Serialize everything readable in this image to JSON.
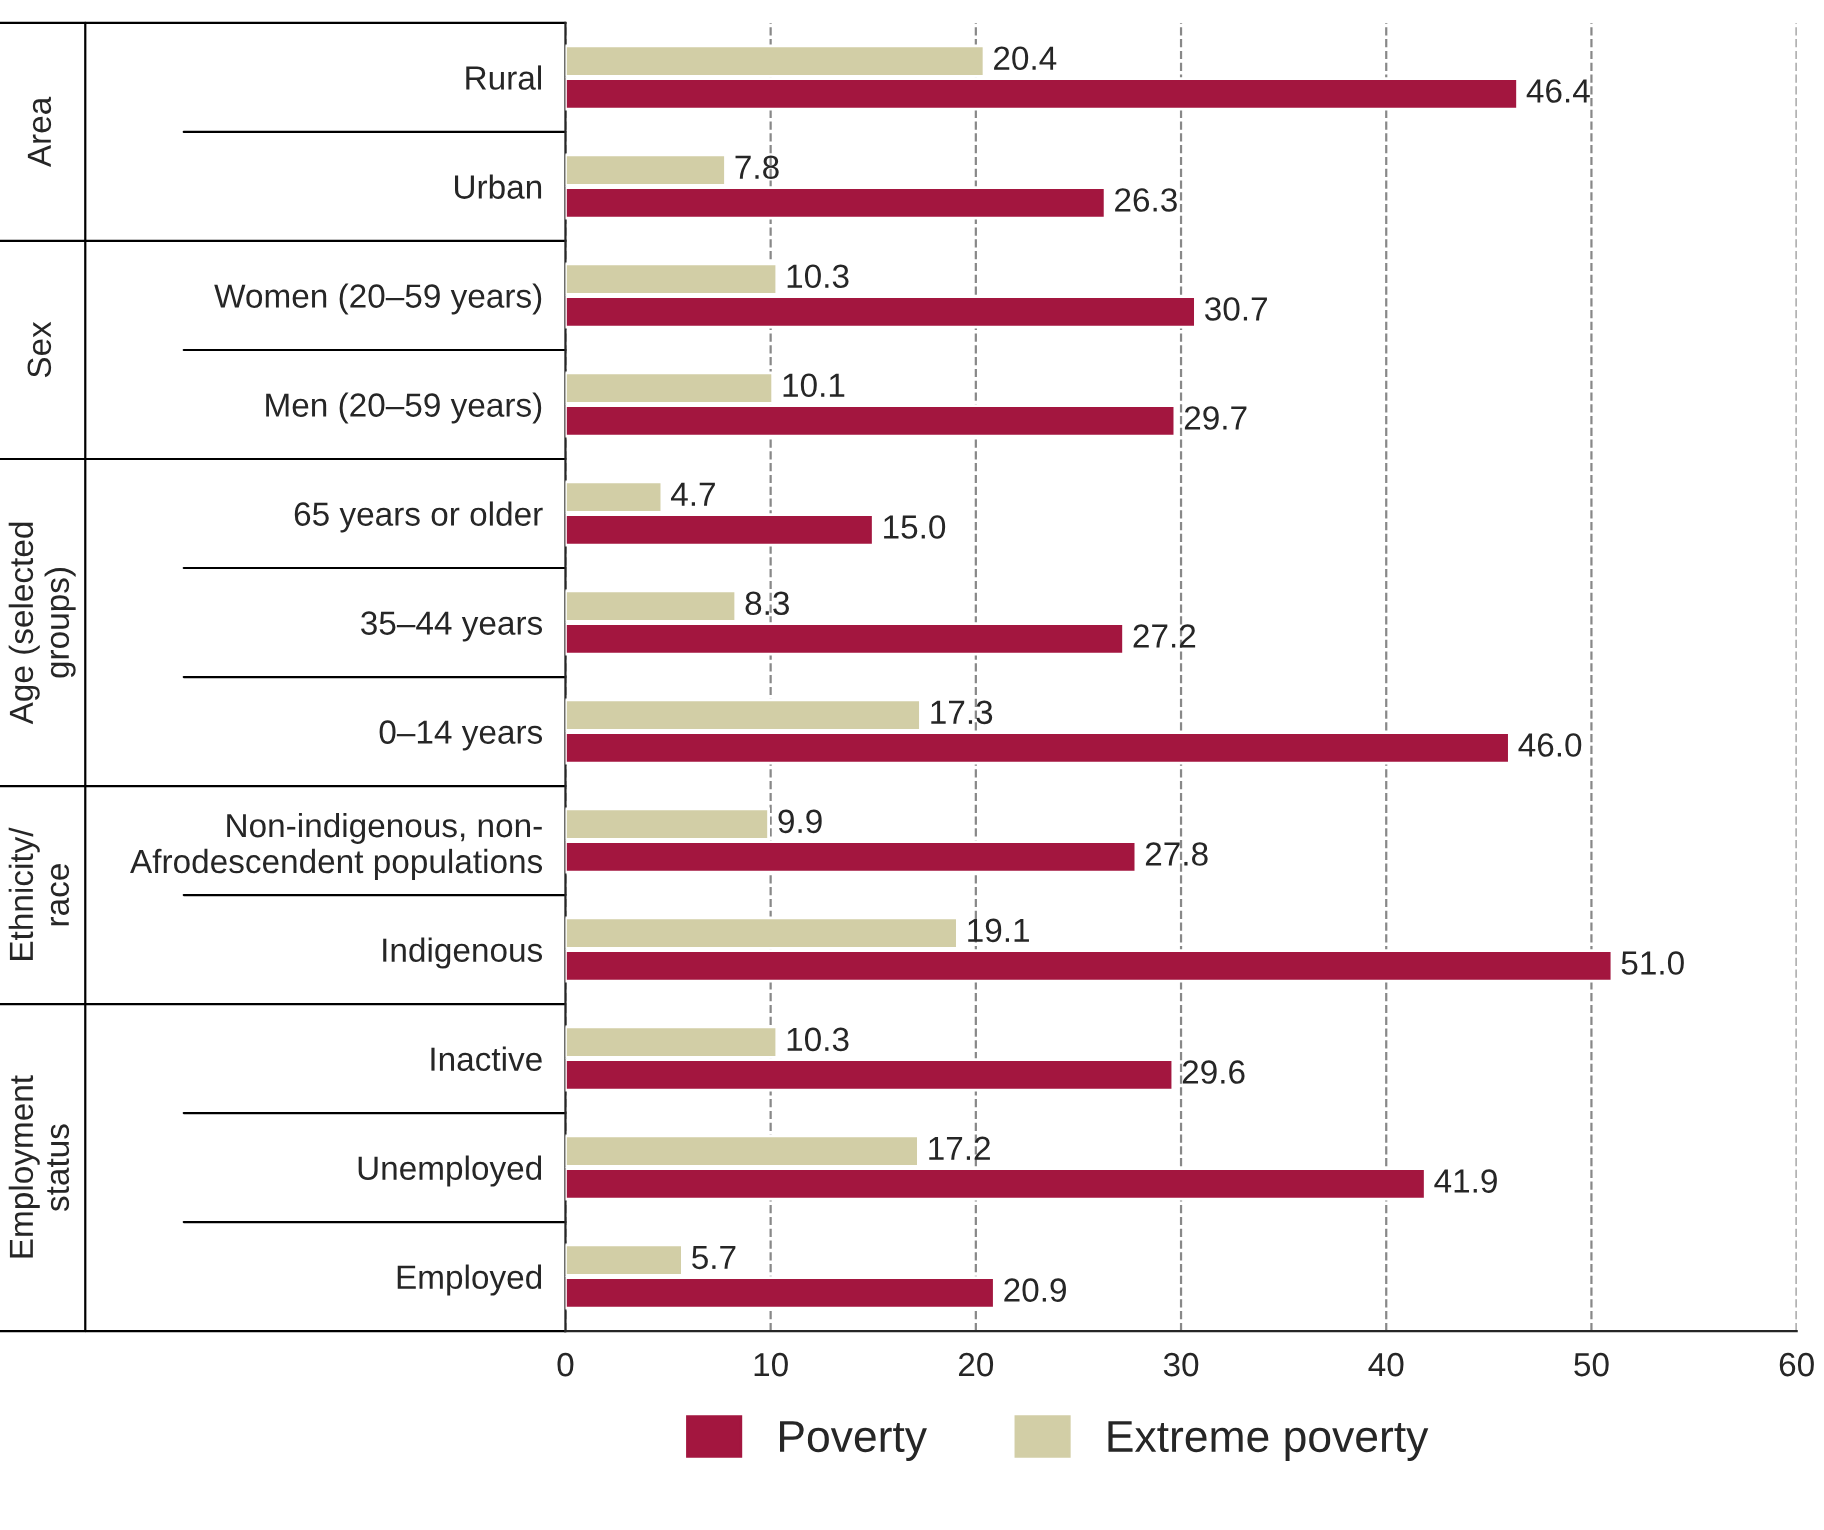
{
  "chart_data": {
    "type": "bar",
    "orientation": "horizontal",
    "categories": [
      "Rural",
      "Urban",
      "Women (20–59 years)",
      "Men (20–59 years)",
      "65 years or older",
      "35–44 years",
      "0–14 years",
      "Non-indigenous, non-\nAfrodescendent populations",
      "Indigenous",
      "Inactive",
      "Unemployed",
      "Employed"
    ],
    "series": [
      {
        "name": "Extreme poverty",
        "color": "#d2cea6",
        "values": [
          20.4,
          7.8,
          10.3,
          10.1,
          4.7,
          8.3,
          17.3,
          9.9,
          19.1,
          10.3,
          17.2,
          5.7
        ],
        "value_labels": [
          "20.4",
          "7.8",
          "10.3",
          "10.1",
          "4.7",
          "8.3",
          "17.3",
          "9.9",
          "19.1",
          "10.3",
          "17.2",
          "5.7"
        ]
      },
      {
        "name": "Poverty",
        "color": "#a3163f",
        "values": [
          46.4,
          26.3,
          30.7,
          29.7,
          15.0,
          27.2,
          46.0,
          27.8,
          51.0,
          29.6,
          41.9,
          20.9
        ],
        "value_labels": [
          "46.4",
          "26.3",
          "30.7",
          "29.7",
          "15.0",
          "27.2",
          "46.0",
          "27.8",
          "51.0",
          "29.6",
          "41.9",
          "20.9"
        ]
      }
    ],
    "xlim": [
      0,
      60
    ],
    "xticks": [
      0,
      10,
      20,
      30,
      40,
      50,
      60
    ],
    "grid": "x",
    "legend": "bottom",
    "annotations": [
      "Area",
      "Sex",
      "Age (selected\ngroups)",
      "Ethnicity/\nrace",
      "Employment\nstatus"
    ]
  }
}
